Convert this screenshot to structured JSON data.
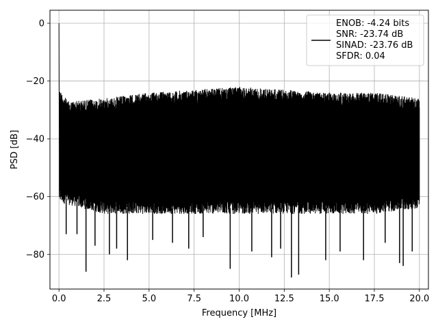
{
  "chart_data": {
    "type": "line",
    "xlabel": "Frequency [MHz]",
    "ylabel": "PSD [dB]",
    "xlim": [
      -0.5,
      20.5
    ],
    "ylim": [
      -92,
      4.5
    ],
    "xticks": [
      0.0,
      2.5,
      5.0,
      7.5,
      10.0,
      12.5,
      15.0,
      17.5,
      20.0
    ],
    "xtick_labels": [
      "0.0",
      "2.5",
      "5.0",
      "7.5",
      "10.0",
      "12.5",
      "15.0",
      "17.5",
      "20.0"
    ],
    "yticks": [
      0,
      -20,
      -40,
      -60,
      -80
    ],
    "ytick_labels": [
      "0",
      "−20",
      "−40",
      "−60",
      "−80"
    ],
    "grid": true,
    "legend_position": "top-right",
    "series": [
      {
        "color": "#000000",
        "x_range": [
          0.0,
          20.0
        ],
        "peak": {
          "x": 0.0,
          "y": 0.0
        },
        "upper_envelope": [
          [
            0.05,
            -23
          ],
          [
            0.5,
            -27
          ],
          [
            2.5,
            -26
          ],
          [
            5.0,
            -24
          ],
          [
            7.5,
            -23
          ],
          [
            10.0,
            -22
          ],
          [
            12.5,
            -23
          ],
          [
            15.0,
            -24
          ],
          [
            17.5,
            -24
          ],
          [
            20.0,
            -26
          ]
        ],
        "typical_lower_envelope": [
          [
            0.0,
            -62
          ],
          [
            2.5,
            -66
          ],
          [
            5.0,
            -66
          ],
          [
            7.5,
            -66
          ],
          [
            10.0,
            -66
          ],
          [
            12.5,
            -66
          ],
          [
            15.0,
            -66
          ],
          [
            17.5,
            -66
          ],
          [
            20.0,
            -64
          ]
        ],
        "deep_spikes": [
          [
            0.4,
            -73
          ],
          [
            1.0,
            -73
          ],
          [
            1.5,
            -86
          ],
          [
            2.0,
            -77
          ],
          [
            2.8,
            -80
          ],
          [
            3.2,
            -78
          ],
          [
            3.8,
            -82
          ],
          [
            5.2,
            -75
          ],
          [
            6.3,
            -76
          ],
          [
            7.2,
            -78
          ],
          [
            8.0,
            -74
          ],
          [
            9.5,
            -85
          ],
          [
            10.7,
            -79
          ],
          [
            11.8,
            -81
          ],
          [
            12.3,
            -78
          ],
          [
            12.9,
            -88
          ],
          [
            13.3,
            -87
          ],
          [
            14.8,
            -82
          ],
          [
            15.6,
            -79
          ],
          [
            16.9,
            -82
          ],
          [
            18.1,
            -76
          ],
          [
            18.9,
            -83
          ],
          [
            19.1,
            -84
          ],
          [
            19.6,
            -79
          ]
        ]
      }
    ],
    "legend": {
      "lines": [
        "ENOB: -4.24 bits",
        "SNR: -23.74 dB",
        "SINAD: -23.76 dB",
        "SFDR: 0.04"
      ]
    }
  }
}
